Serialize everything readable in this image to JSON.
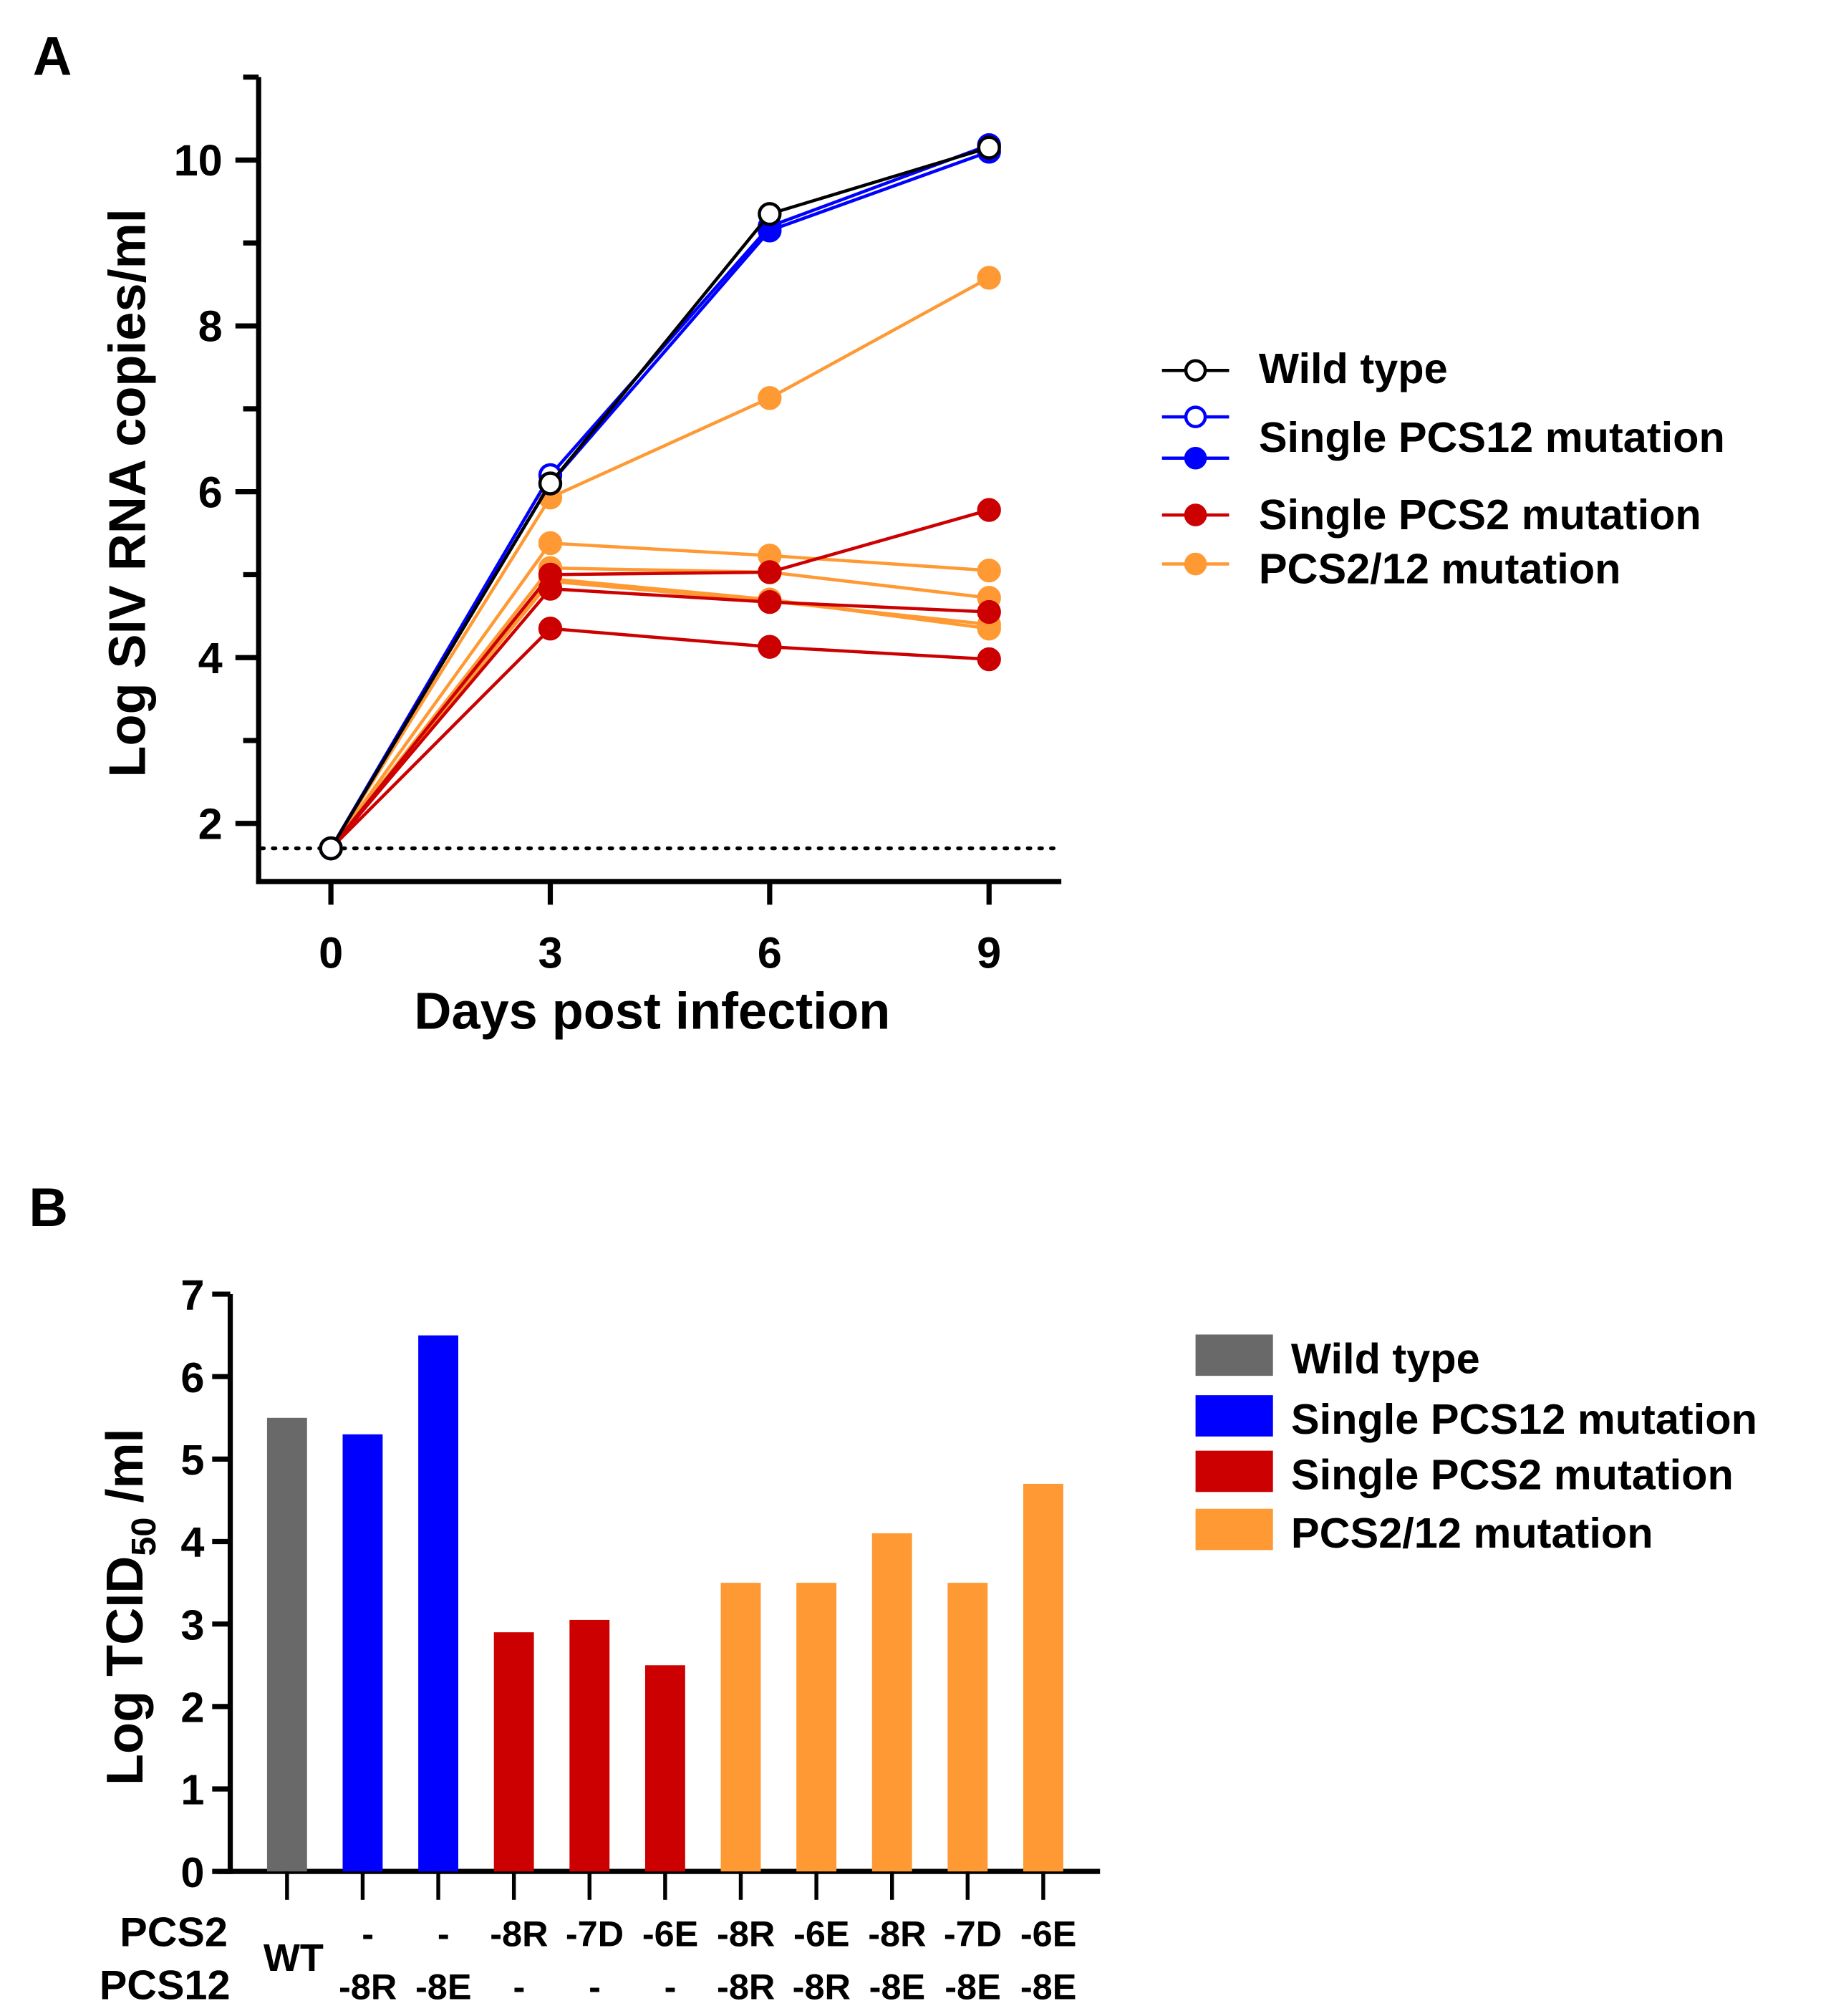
{
  "chart_data": [
    {
      "panel": "A",
      "type": "line",
      "xlabel": "Days post infection",
      "ylabel": "Log SIV RNA copies/ml",
      "x": [
        0,
        3,
        6,
        9
      ],
      "x_ticks": [
        "0",
        "3",
        "6",
        "9"
      ],
      "y_ticks": [
        "2",
        "4",
        "6",
        "8",
        "10"
      ],
      "ylim": [
        1.3,
        11
      ],
      "detection_limit": 1.7,
      "legend_position": "right",
      "legend": [
        {
          "label": "Wild type",
          "color": "#000000",
          "markers": [
            "open"
          ]
        },
        {
          "label": "Single PCS12 mutation",
          "color": "#0000ff",
          "markers": [
            "open",
            "filled"
          ]
        },
        {
          "label": "Single PCS2 mutation",
          "color": "#cc0000",
          "markers": [
            "filled"
          ]
        },
        {
          "label": "PCS2/12 mutation",
          "color": "#ff9933",
          "markers": [
            "filled"
          ]
        }
      ],
      "series": [
        {
          "name": "PCS2/12 mutation 1",
          "group": "PCS2/12 mutation",
          "color": "#ff9933",
          "marker": "filled",
          "values": [
            1.7,
            5.93,
            7.13,
            8.58
          ]
        },
        {
          "name": "PCS2/12 mutation 2",
          "group": "PCS2/12 mutation",
          "color": "#ff9933",
          "marker": "filled",
          "values": [
            1.7,
            5.38,
            5.23,
            5.05
          ]
        },
        {
          "name": "PCS2/12 mutation 3",
          "group": "PCS2/12 mutation",
          "color": "#ff9933",
          "marker": "filled",
          "values": [
            1.7,
            5.08,
            5.03,
            4.72
          ]
        },
        {
          "name": "PCS2/12 mutation 4",
          "group": "PCS2/12 mutation",
          "color": "#ff9933",
          "marker": "filled",
          "values": [
            1.7,
            4.95,
            4.7,
            4.35
          ]
        },
        {
          "name": "PCS2/12 mutation 5",
          "group": "PCS2/12 mutation",
          "color": "#ff9933",
          "marker": "filled",
          "values": [
            1.7,
            4.92,
            4.68,
            4.4
          ]
        },
        {
          "name": "Single PCS2 mutation 1",
          "group": "Single PCS2 mutation",
          "color": "#cc0000",
          "marker": "filled",
          "values": [
            1.7,
            5.0,
            5.03,
            5.78
          ]
        },
        {
          "name": "Single PCS2 mutation 2",
          "group": "Single PCS2 mutation",
          "color": "#cc0000",
          "marker": "filled",
          "values": [
            1.7,
            4.83,
            4.67,
            4.55
          ]
        },
        {
          "name": "Single PCS2 mutation 3",
          "group": "Single PCS2 mutation",
          "color": "#cc0000",
          "marker": "filled",
          "values": [
            1.7,
            4.35,
            4.13,
            3.98
          ]
        },
        {
          "name": "Single PCS12 mutation open",
          "group": "Single PCS12 mutation",
          "color": "#0000ff",
          "marker": "open",
          "values": [
            1.7,
            6.2,
            9.2,
            10.18
          ]
        },
        {
          "name": "Single PCS12 mutation filled",
          "group": "Single PCS12 mutation",
          "color": "#0000ff",
          "marker": "filled",
          "values": [
            1.7,
            6.1,
            9.15,
            10.1
          ]
        },
        {
          "name": "Wild type",
          "group": "Wild type",
          "color": "#000000",
          "marker": "open",
          "values": [
            1.7,
            6.1,
            9.35,
            10.15
          ]
        }
      ]
    },
    {
      "panel": "B",
      "type": "bar",
      "ylabel_main": "Log TCID",
      "ylabel_sub": "50",
      "ylabel_tail": " /ml",
      "ylim": [
        0,
        7
      ],
      "y_ticks": [
        "0",
        "1",
        "2",
        "3",
        "4",
        "5",
        "6",
        "7"
      ],
      "row_labels": [
        "PCS2",
        "PCS12"
      ],
      "wt_label": "WT",
      "legend_position": "right",
      "legend": [
        {
          "label": "Wild type",
          "color": "#696969"
        },
        {
          "label": "Single PCS12 mutation",
          "color": "#0000ff"
        },
        {
          "label": "Single PCS2 mutation",
          "color": "#cc0000"
        },
        {
          "label": "PCS2/12 mutation",
          "color": "#ff9933"
        }
      ],
      "categories": [
        {
          "pcs2": "",
          "pcs12": "",
          "wt": true,
          "value": 5.5,
          "color": "#696969"
        },
        {
          "pcs2": "-",
          "pcs12": "-8R",
          "value": 5.3,
          "color": "#0000ff"
        },
        {
          "pcs2": "-",
          "pcs12": "-8E",
          "value": 6.5,
          "color": "#0000ff"
        },
        {
          "pcs2": "-8R",
          "pcs12": "-",
          "value": 2.9,
          "color": "#cc0000"
        },
        {
          "pcs2": "-7D",
          "pcs12": "-",
          "value": 3.05,
          "color": "#cc0000"
        },
        {
          "pcs2": "-6E",
          "pcs12": "-",
          "value": 2.5,
          "color": "#cc0000"
        },
        {
          "pcs2": "-8R",
          "pcs12": "-8R",
          "value": 3.5,
          "color": "#ff9933"
        },
        {
          "pcs2": "-6E",
          "pcs12": "-8R",
          "value": 3.5,
          "color": "#ff9933"
        },
        {
          "pcs2": "-8R",
          "pcs12": "-8E",
          "value": 4.1,
          "color": "#ff9933"
        },
        {
          "pcs2": "-7D",
          "pcs12": "-8E",
          "value": 3.5,
          "color": "#ff9933"
        },
        {
          "pcs2": "-6E",
          "pcs12": "-8E",
          "value": 4.7,
          "color": "#ff9933"
        }
      ]
    }
  ],
  "panel_labels": {
    "a": "A",
    "b": "B"
  }
}
